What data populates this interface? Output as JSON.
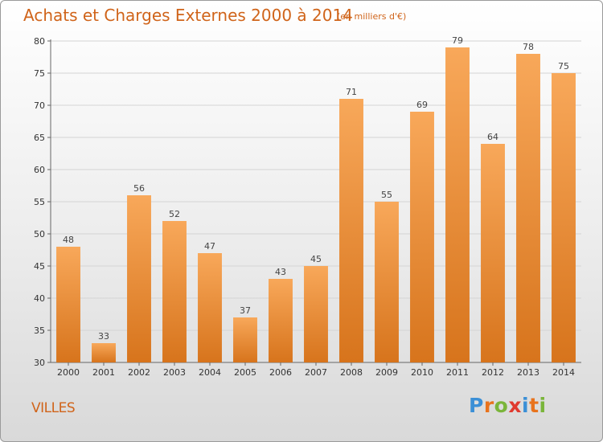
{
  "header": {
    "title": "Achats et Charges Externes 2000 à 2014",
    "subtitle": "(en milliers d'€)"
  },
  "commune": "VILLES",
  "logo": {
    "letters": [
      "P",
      "r",
      "o",
      "x",
      "i",
      "t",
      "i"
    ],
    "colors": [
      "#3b8fd6",
      "#e8731d",
      "#7ab53a",
      "#e03a2f",
      "#3b8fd6",
      "#e8731d",
      "#7ab53a"
    ]
  },
  "colors": {
    "bar_light": "#f8a85a",
    "bar_dark": "#d7741c",
    "title": "#d0641a"
  },
  "chart_data": {
    "type": "bar",
    "categories": [
      "2000",
      "2001",
      "2002",
      "2003",
      "2004",
      "2005",
      "2006",
      "2007",
      "2008",
      "2009",
      "2010",
      "2011",
      "2012",
      "2013",
      "2014"
    ],
    "values": [
      48,
      33,
      56,
      52,
      47,
      37,
      43,
      45,
      71,
      55,
      69,
      79,
      64,
      78,
      75
    ],
    "data_labels": [
      "48",
      "33",
      "56",
      "52",
      "47",
      "37",
      "43",
      "45",
      "71",
      "55",
      "69",
      "79",
      "64",
      "78",
      "75"
    ],
    "ylim": [
      30,
      80
    ],
    "yticks": [
      "30",
      "35",
      "40",
      "45",
      "50",
      "55",
      "60",
      "65",
      "70",
      "75",
      "80"
    ],
    "grid": true
  }
}
